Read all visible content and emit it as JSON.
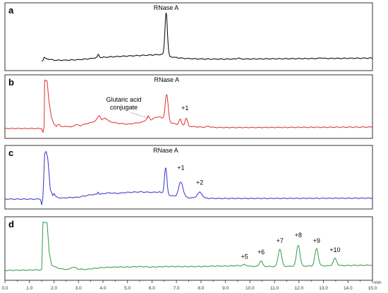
{
  "chart_data": {
    "type": "line",
    "x_axis": {
      "unit_label": "min",
      "range": [
        0,
        15
      ],
      "ticks": [
        0.0,
        0.5,
        1.0,
        1.5,
        2.0,
        2.5,
        3.0,
        3.5,
        4.0,
        4.5,
        5.0,
        5.5,
        6.0,
        6.5,
        7.0,
        7.5,
        8.0,
        8.5,
        9.0,
        9.5,
        10.0,
        10.5,
        11.0,
        11.5,
        12.0,
        12.5,
        13.0,
        13.5,
        14.0,
        14.5,
        15.0
      ],
      "tick_labels": [
        "0.0",
        "1.0",
        "2.0",
        "3.0",
        "4.0",
        "5.0",
        "6.0",
        "7.0",
        "8.0",
        "9.0",
        "10.0",
        "11.0",
        "12.0",
        "13.0",
        "14.0",
        "15.0"
      ]
    },
    "panels": [
      {
        "label": "a",
        "color": "#000000",
        "y_range": [
          0,
          100
        ],
        "baseline": {
          "start": 0,
          "end": 5
        },
        "trace": [
          [
            1.55,
            0
          ],
          [
            1.6,
            7
          ],
          [
            1.65,
            4
          ],
          [
            1.8,
            3
          ],
          [
            2.0,
            1
          ],
          [
            2.5,
            1
          ],
          [
            3.0,
            2
          ],
          [
            3.5,
            4
          ],
          [
            3.75,
            6
          ],
          [
            3.8,
            8
          ],
          [
            3.85,
            6
          ],
          [
            4.2,
            7
          ],
          [
            4.6,
            8
          ],
          [
            5.0,
            9
          ],
          [
            5.5,
            10
          ],
          [
            6.0,
            11
          ],
          [
            6.4,
            12
          ]
        ],
        "peaks": [
          {
            "x": 3.82,
            "h": 4,
            "w": 0.04
          },
          {
            "x": 6.58,
            "h": 82,
            "w": 0.05
          },
          {
            "x": 9.52,
            "h": 2,
            "w": 0.05
          },
          {
            "x": 12.9,
            "h": 1.5,
            "w": 0.05
          }
        ],
        "annotations": [
          {
            "text": "RNase A",
            "x": 6.58,
            "y": 97
          }
        ],
        "leader": null
      },
      {
        "label": "b",
        "color": "#e03030",
        "y_range": [
          0,
          100
        ],
        "baseline": {
          "start": 0,
          "end": 3
        },
        "trace": [
          [
            0,
            0
          ],
          [
            1.5,
            0
          ],
          [
            1.55,
            -9
          ],
          [
            1.6,
            5
          ],
          [
            1.62,
            100
          ],
          [
            1.66,
            100
          ],
          [
            1.72,
            100
          ],
          [
            1.8,
            55
          ],
          [
            1.9,
            22
          ],
          [
            2.0,
            10
          ],
          [
            2.1,
            4
          ],
          [
            2.2,
            9
          ],
          [
            2.35,
            3
          ],
          [
            2.5,
            5
          ],
          [
            2.7,
            3
          ],
          [
            2.9,
            8
          ],
          [
            3.1,
            6
          ],
          [
            3.3,
            10
          ],
          [
            3.5,
            12
          ],
          [
            3.7,
            16
          ],
          [
            3.85,
            28
          ],
          [
            3.95,
            18
          ],
          [
            4.1,
            22
          ],
          [
            4.25,
            15
          ],
          [
            4.4,
            13
          ],
          [
            4.6,
            11
          ],
          [
            4.8,
            10
          ],
          [
            5.0,
            9
          ],
          [
            5.2,
            10
          ],
          [
            5.4,
            12
          ],
          [
            5.6,
            13
          ],
          [
            5.75,
            18
          ],
          [
            5.85,
            26
          ],
          [
            5.95,
            18
          ],
          [
            6.1,
            22
          ],
          [
            6.3,
            25
          ]
        ],
        "peaks": [
          {
            "x": 6.6,
            "h": 55,
            "w": 0.06
          },
          {
            "x": 7.15,
            "h": 12,
            "w": 0.05
          },
          {
            "x": 7.4,
            "h": 16,
            "w": 0.05
          },
          {
            "x": 8.3,
            "h": 2,
            "w": 0.08
          }
        ],
        "annotations": [
          {
            "text": "RNase A",
            "x": 6.6,
            "y": 97
          },
          {
            "text": "Glutaric acid",
            "x": 4.85,
            "y": 56
          },
          {
            "text": "conjugate",
            "x": 4.85,
            "y": 40
          },
          {
            "text": "+1",
            "x": 7.35,
            "y": 38
          }
        ],
        "leader": {
          "from": [
            5.15,
            33
          ],
          "to": [
            5.88,
            21
          ]
        }
      },
      {
        "label": "c",
        "color": "#3333cc",
        "y_range": [
          0,
          100
        ],
        "baseline": {
          "start": 0,
          "end": 2
        },
        "trace": [
          [
            0,
            0
          ],
          [
            1.45,
            0
          ],
          [
            1.5,
            -12
          ],
          [
            1.55,
            3
          ],
          [
            1.62,
            95
          ],
          [
            1.68,
            100
          ],
          [
            1.75,
            85
          ],
          [
            1.85,
            20
          ],
          [
            1.95,
            8
          ],
          [
            2.0,
            12
          ],
          [
            2.1,
            4
          ],
          [
            2.3,
            2
          ],
          [
            2.6,
            3
          ],
          [
            3.0,
            4
          ],
          [
            3.5,
            9
          ],
          [
            3.75,
            10
          ],
          [
            3.8,
            16
          ],
          [
            3.85,
            10
          ],
          [
            4.2,
            13
          ],
          [
            4.6,
            12
          ],
          [
            5.0,
            14
          ],
          [
            5.5,
            15
          ],
          [
            6.0,
            14
          ],
          [
            6.3,
            15
          ]
        ],
        "peaks": [
          {
            "x": 6.56,
            "h": 55,
            "w": 0.05
          },
          {
            "x": 7.18,
            "h": 31,
            "w": 0.09
          },
          {
            "x": 7.95,
            "h": 12,
            "w": 0.1
          }
        ],
        "annotations": [
          {
            "text": "RNase A",
            "x": 6.56,
            "y": 97
          },
          {
            "text": "+1",
            "x": 7.18,
            "y": 61
          },
          {
            "text": "+2",
            "x": 7.95,
            "y": 30
          }
        ],
        "leader": null
      },
      {
        "label": "d",
        "color": "#2e9b4a",
        "y_range": [
          0,
          100
        ],
        "baseline": {
          "start": 0,
          "end": 11
        },
        "trace": [
          [
            1.45,
            0
          ],
          [
            1.5,
            2
          ],
          [
            1.55,
            100
          ],
          [
            1.65,
            100
          ],
          [
            1.72,
            100
          ],
          [
            1.8,
            40
          ],
          [
            1.9,
            12
          ],
          [
            2.0,
            8
          ],
          [
            2.3,
            3
          ],
          [
            2.6,
            2
          ],
          [
            2.75,
            7
          ],
          [
            2.85,
            6
          ],
          [
            3.0,
            3
          ],
          [
            3.3,
            2
          ],
          [
            3.6,
            4
          ],
          [
            4.0,
            6
          ],
          [
            4.5,
            7
          ],
          [
            5.0,
            7
          ],
          [
            5.5,
            8
          ],
          [
            6.0,
            7
          ],
          [
            6.5,
            8
          ],
          [
            7.0,
            8
          ],
          [
            7.5,
            8
          ],
          [
            8.0,
            8
          ],
          [
            8.5,
            9
          ],
          [
            9.0,
            9
          ],
          [
            9.5,
            10
          ]
        ],
        "peaks": [
          {
            "x": 9.78,
            "h": 3,
            "w": 0.08
          },
          {
            "x": 10.45,
            "h": 12,
            "w": 0.06
          },
          {
            "x": 11.22,
            "h": 36,
            "w": 0.07
          },
          {
            "x": 11.97,
            "h": 44,
            "w": 0.07
          },
          {
            "x": 12.72,
            "h": 36,
            "w": 0.07
          },
          {
            "x": 13.47,
            "h": 15,
            "w": 0.07
          }
        ],
        "annotations": [
          {
            "text": "+5",
            "x": 9.78,
            "y": 24
          },
          {
            "text": "+6",
            "x": 10.45,
            "y": 34
          },
          {
            "text": "+7",
            "x": 11.22,
            "y": 57
          },
          {
            "text": "+8",
            "x": 11.97,
            "y": 69
          },
          {
            "text": "+9",
            "x": 12.72,
            "y": 57
          },
          {
            "text": "+10",
            "x": 13.47,
            "y": 38
          }
        ],
        "leader": null
      }
    ]
  }
}
